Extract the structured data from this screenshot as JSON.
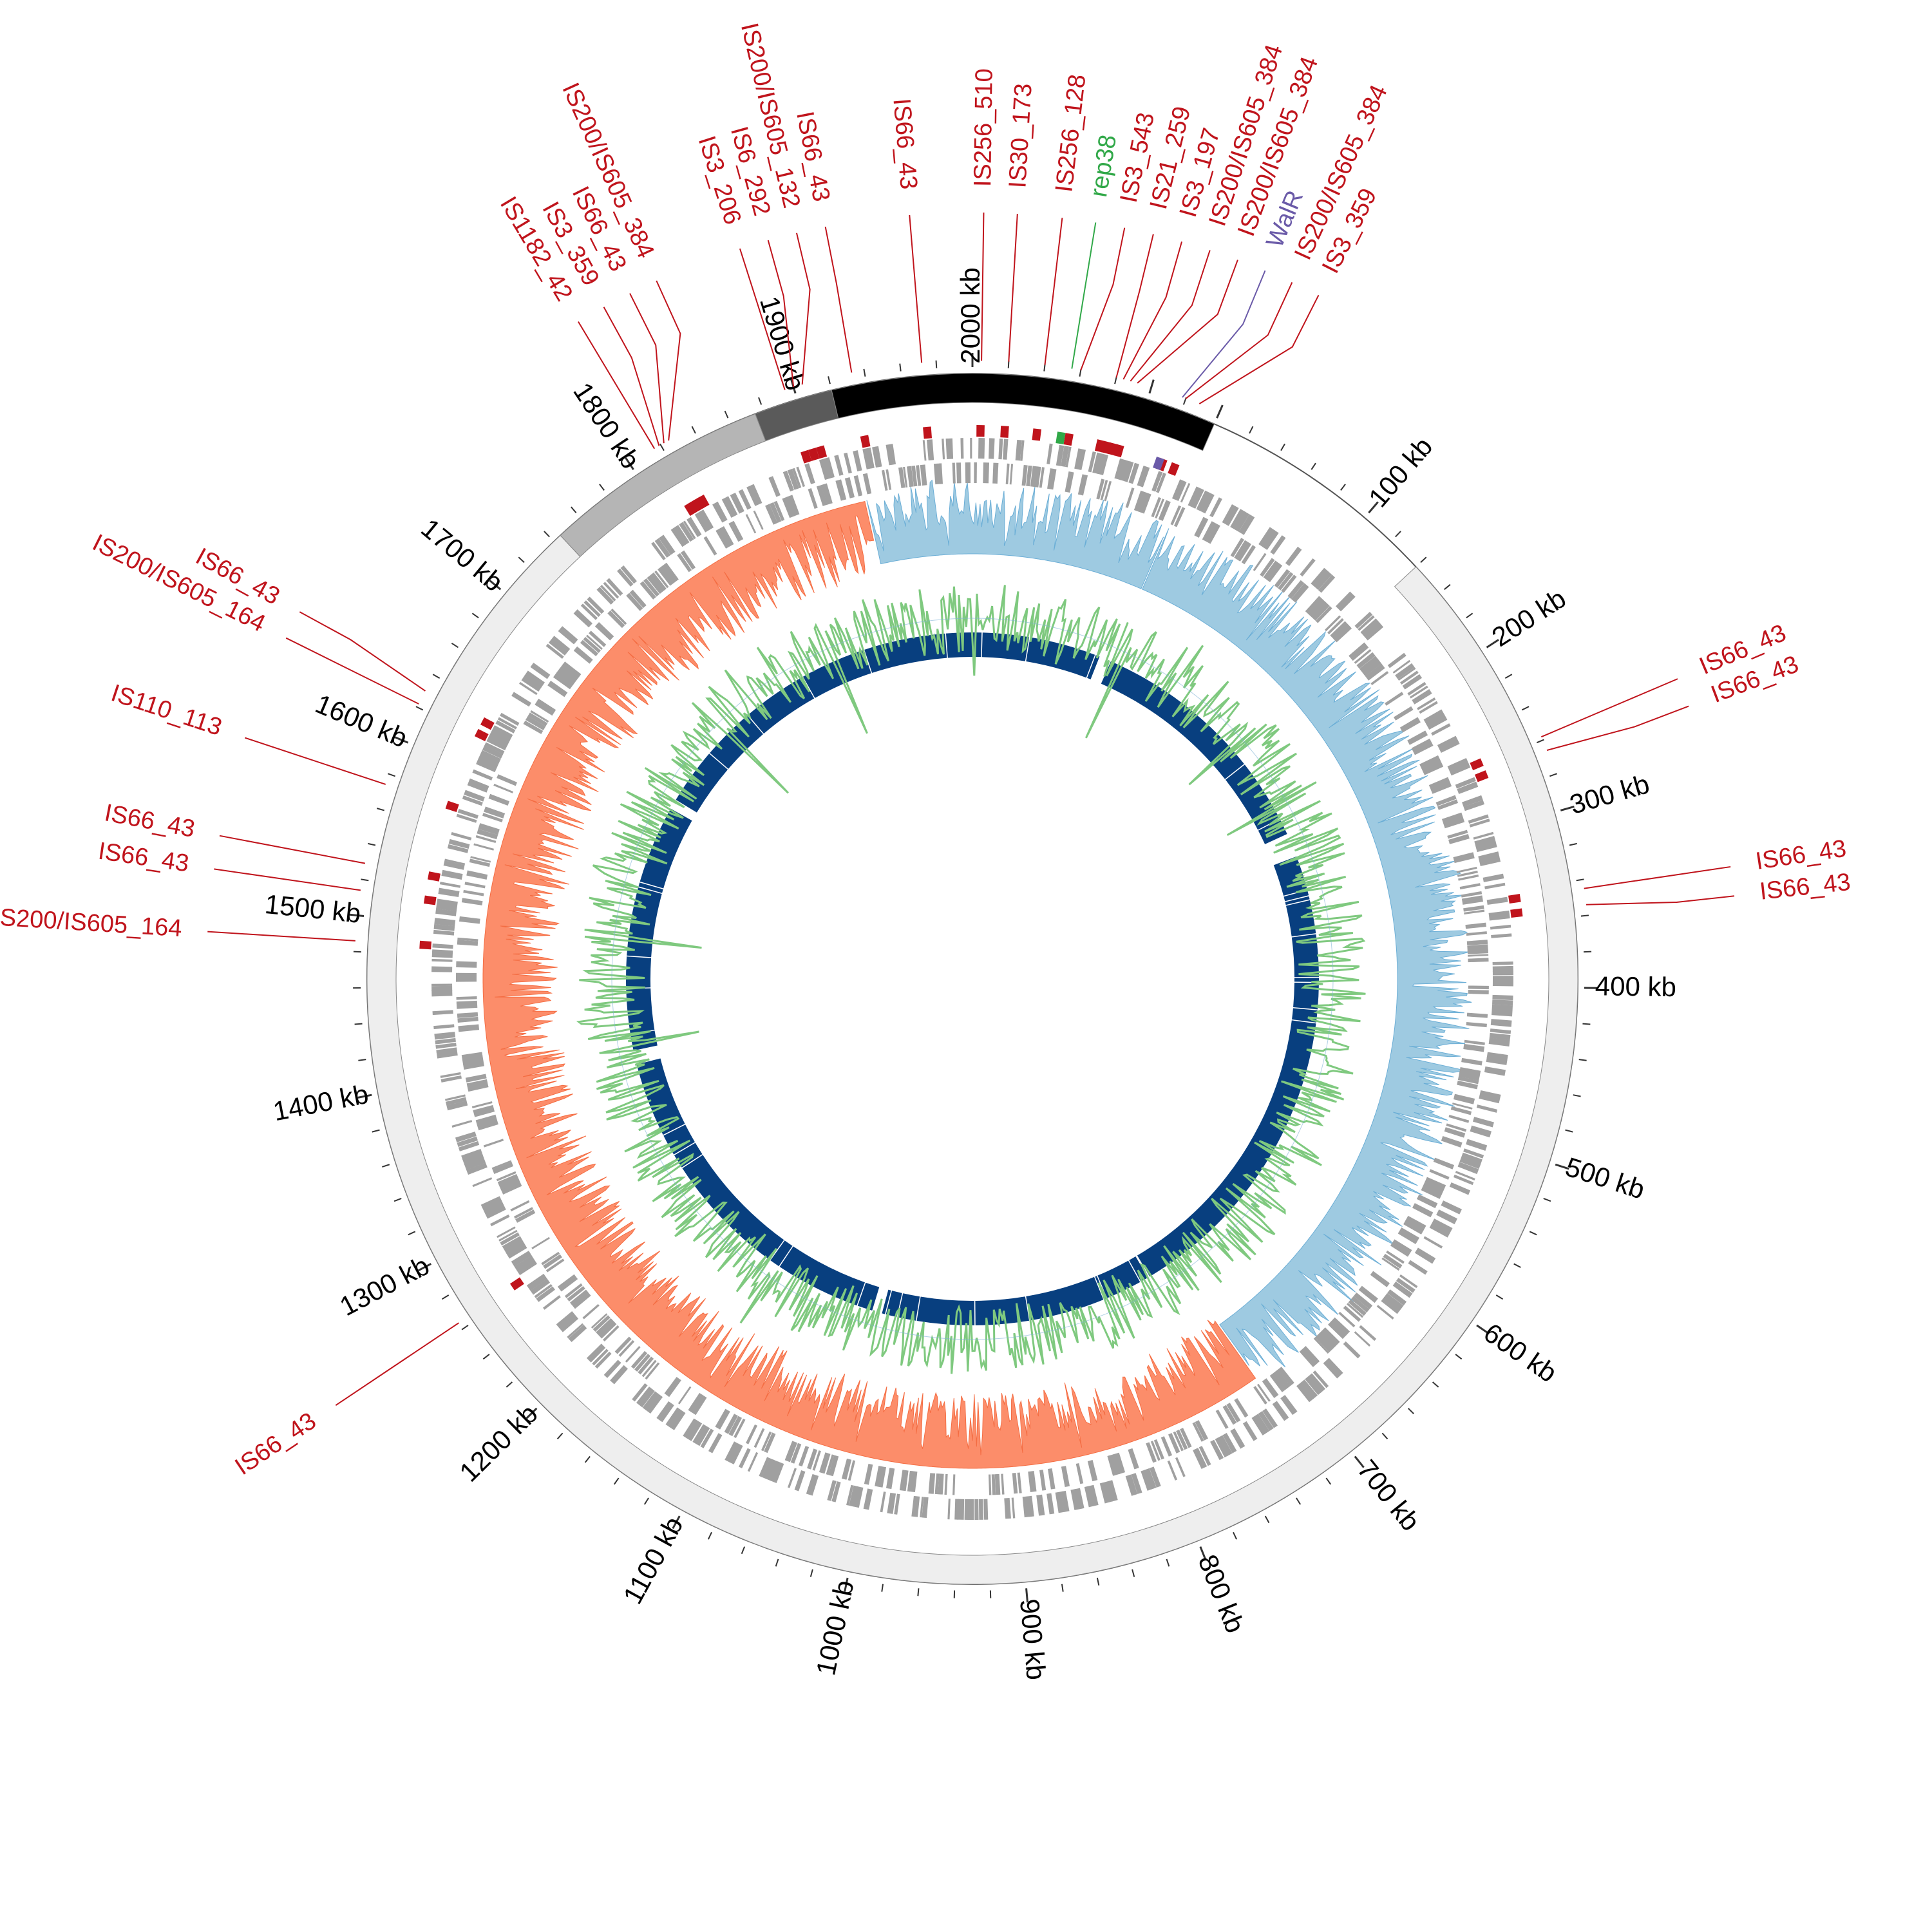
{
  "figure": {
    "type": "circular-genome-map",
    "genome_length_kb": 2140,
    "origin_kb": 2000
  },
  "scale": {
    "unit": "kb",
    "major_ticks": [
      {
        "pos": 100,
        "label": "100 kb"
      },
      {
        "pos": 200,
        "label": "200 kb"
      },
      {
        "pos": 300,
        "label": "300 kb"
      },
      {
        "pos": 400,
        "label": "400 kb"
      },
      {
        "pos": 500,
        "label": "500 kb"
      },
      {
        "pos": 600,
        "label": "600 kb"
      },
      {
        "pos": 700,
        "label": "700 kb"
      },
      {
        "pos": 800,
        "label": "800 kb"
      },
      {
        "pos": 900,
        "label": "900 kb"
      },
      {
        "pos": 1000,
        "label": "1000 kb"
      },
      {
        "pos": 1100,
        "label": "1100 kb"
      },
      {
        "pos": 1200,
        "label": "1200 kb"
      },
      {
        "pos": 1300,
        "label": "1300 kb"
      },
      {
        "pos": 1400,
        "label": "1400 kb"
      },
      {
        "pos": 1500,
        "label": "1500 kb"
      },
      {
        "pos": 1600,
        "label": "1600 kb"
      },
      {
        "pos": 1700,
        "label": "1700 kb"
      },
      {
        "pos": 1800,
        "label": "1800 kb"
      },
      {
        "pos": 1900,
        "label": "1900 kb"
      },
      {
        "pos": 2000,
        "label": "2000 kb"
      }
    ],
    "minor_tick_step_kb": 20
  },
  "contigs": [
    {
      "start": 140,
      "end": 1745,
      "color": "#eeeeee"
    },
    {
      "start": 1745,
      "end": 1875,
      "color": "#b5b5b5"
    },
    {
      "start": 1875,
      "end": 1920,
      "color": "#5a5a5a"
    },
    {
      "start": 1920,
      "end": 2140,
      "color": "#000000"
    }
  ],
  "colors": {
    "is_element": "#c0141c",
    "replicon": "#30a848",
    "resistance_gene": "#6a5aa8",
    "gene_track": "#a0a0a0",
    "skew_positive": "#9ecae1",
    "skew_negative": "#fc8d6a",
    "gc_content_pos": "#7fc97f",
    "gc_content_neg": "#7fb3d5",
    "homology_blocks": "#083f7f",
    "kb_label": "#000000"
  },
  "features": [
    {
      "label": "IS200/IS605_384",
      "pos": 2120,
      "type": "is"
    },
    {
      "label": "IS3_359",
      "pos": 2128,
      "type": "is"
    },
    {
      "label": "WalR",
      "pos": 2118,
      "type": "resistance"
    },
    {
      "label": "IS200/IS605_384",
      "pos": 2092,
      "type": "is"
    },
    {
      "label": "IS200/IS605_384",
      "pos": 2088,
      "type": "is"
    },
    {
      "label": "IS3_197",
      "pos": 2084,
      "type": "is"
    },
    {
      "label": "IS21_259",
      "pos": 2080,
      "type": "is"
    },
    {
      "label": "IS3_543",
      "pos": 2060,
      "type": "is"
    },
    {
      "label": "rep38",
      "pos": 2055,
      "type": "replicon"
    },
    {
      "label": "IS256_128",
      "pos": 2040,
      "type": "is"
    },
    {
      "label": "IS30_173",
      "pos": 2020,
      "type": "is"
    },
    {
      "label": "IS256_510",
      "pos": 2005,
      "type": "is"
    },
    {
      "label": "IS66_43",
      "pos": 1972,
      "type": "is"
    },
    {
      "label": "IS66_43",
      "pos": 1933,
      "type": "is"
    },
    {
      "label": "IS200/IS605_132",
      "pos": 1905,
      "type": "is"
    },
    {
      "label": "IS6_292",
      "pos": 1900,
      "type": "is"
    },
    {
      "label": "IS3_206",
      "pos": 1895,
      "type": "is"
    },
    {
      "label": "IS200/IS605_384",
      "pos": 1825,
      "type": "is"
    },
    {
      "label": "IS66_43",
      "pos": 1822,
      "type": "is"
    },
    {
      "label": "IS3_359",
      "pos": 1819,
      "type": "is"
    },
    {
      "label": "IS1182_42",
      "pos": 1816,
      "type": "is"
    },
    {
      "label": "IS66_43",
      "pos": 258,
      "type": "is"
    },
    {
      "label": "IS66_43",
      "pos": 266,
      "type": "is"
    },
    {
      "label": "IS66_43",
      "pos": 345,
      "type": "is"
    },
    {
      "label": "IS66_43",
      "pos": 354,
      "type": "is"
    },
    {
      "label": "IS66_43",
      "pos": 1630,
      "type": "is"
    },
    {
      "label": "IS200/IS605_164",
      "pos": 1622,
      "type": "is"
    },
    {
      "label": "IS110_113",
      "pos": 1574,
      "type": "is"
    },
    {
      "label": "IS66_43",
      "pos": 1529,
      "type": "is"
    },
    {
      "label": "IS66_43",
      "pos": 1514,
      "type": "is"
    },
    {
      "label": "IS200/IS605_164",
      "pos": 1486,
      "type": "is"
    },
    {
      "label": "IS66_43",
      "pos": 1264,
      "type": "is"
    }
  ],
  "homology_gaps": [
    {
      "start": 2128,
      "end": 2160
    },
    {
      "start": 248,
      "end": 272
    },
    {
      "start": 1020,
      "end": 1030
    },
    {
      "start": 1380,
      "end": 1394
    },
    {
      "start": 1640,
      "end": 1650
    }
  ],
  "skew": {
    "positive_segments": [
      [
        -30,
        720
      ],
      [
        1925,
        2140
      ]
    ],
    "negative_segments": [
      [
        720,
        1925
      ]
    ]
  }
}
